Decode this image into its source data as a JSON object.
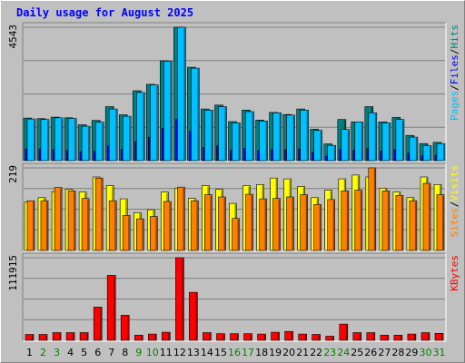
{
  "chart_data": {
    "type": "bar",
    "title": "Daily usage for August 2025",
    "categories": [
      "1",
      "2",
      "3",
      "4",
      "5",
      "6",
      "7",
      "8",
      "9",
      "10",
      "11",
      "12",
      "13",
      "14",
      "15",
      "16",
      "17",
      "18",
      "19",
      "20",
      "21",
      "22",
      "23",
      "24",
      "25",
      "26",
      "27",
      "28",
      "29",
      "30",
      "31"
    ],
    "weekend_days": [
      "2",
      "3",
      "9",
      "10",
      "16",
      "17",
      "23",
      "24",
      "30",
      "31"
    ],
    "panels": [
      {
        "scale_label": "4543",
        "ylim": [
          0,
          4543
        ],
        "legend": [
          {
            "name": "Pages",
            "color": "#00c0ff"
          },
          {
            "name": "Files",
            "color": "#0000ff"
          },
          {
            "name": "Hits",
            "color": "#008080"
          }
        ],
        "series": [
          {
            "name": "Hits",
            "color": "#008080",
            "values": [
              1450,
              1430,
              1480,
              1460,
              1220,
              1370,
              1840,
              1560,
              2380,
              2600,
              3400,
              4543,
              3180,
              1760,
              1890,
              1330,
              1720,
              1380,
              1640,
              1570,
              1760,
              1070,
              570,
              1400,
              1320,
              1840,
              1320,
              1470,
              860,
              580,
              620
            ]
          },
          {
            "name": "Files",
            "color": "#0000ff",
            "values": [
              400,
              400,
              380,
              350,
              300,
              320,
              500,
              380,
              650,
              800,
              1100,
              1400,
              1000,
              450,
              500,
              350,
              420,
              350,
              380,
              370,
              400,
              280,
              150,
              380,
              360,
              420,
              330,
              380,
              250,
              160,
              180
            ]
          },
          {
            "name": "Pages",
            "color": "#00c0ff",
            "values": [
              1420,
              1400,
              1460,
              1440,
              1170,
              1310,
              1760,
              1510,
              2320,
              2580,
              3390,
              4543,
              3150,
              1720,
              1840,
              1290,
              1670,
              1350,
              1630,
              1550,
              1720,
              1030,
              520,
              1060,
              1320,
              1630,
              1290,
              1400,
              800,
              510,
              580
            ]
          }
        ]
      },
      {
        "scale_label": "219",
        "ylim": [
          0,
          219
        ],
        "legend": [
          {
            "name": "Sites",
            "color": "#ff8000"
          },
          {
            "name": "Visits",
            "color": "#ffff00"
          }
        ],
        "series": [
          {
            "name": "Visits",
            "color": "#ffff00",
            "values": [
              128,
              140,
              156,
              162,
              155,
              195,
              172,
              137,
              100,
              108,
              155,
              165,
              138,
              172,
              162,
              125,
              172,
              175,
              192,
              190,
              170,
              140,
              160,
              190,
              200,
              195,
              165,
              155,
              140,
              195,
              175
            ]
          },
          {
            "name": "Sites",
            "color": "#ff8000",
            "values": [
              132,
              132,
              167,
              158,
              138,
              192,
              132,
              93,
              84,
              90,
              130,
              168,
              132,
              148,
              142,
              85,
              149,
              137,
              138,
              142,
              148,
              122,
              135,
              158,
              160,
              219,
              158,
              146,
              132,
              178,
              148
            ]
          }
        ]
      },
      {
        "scale_label": "111915",
        "ylim": [
          0,
          111915
        ],
        "legend": [
          {
            "name": "KBytes",
            "color": "#ff0000"
          }
        ],
        "series": [
          {
            "name": "KBytes",
            "color": "#ff0000",
            "values": [
              8000,
              8000,
              10500,
              10500,
              10500,
              45000,
              88000,
              34000,
              7000,
              8500,
              11000,
              111915,
              65000,
              10500,
              9000,
              9000,
              9000,
              8500,
              11000,
              12000,
              8500,
              8000,
              5500,
              22000,
              10500,
              10500,
              7000,
              7000,
              8500,
              10500,
              9500
            ]
          }
        ]
      }
    ],
    "colors": {
      "background": "#c0c0c0",
      "title": "#0000ff",
      "weekday_label": "#000000",
      "weekend_label": "#008000"
    }
  }
}
